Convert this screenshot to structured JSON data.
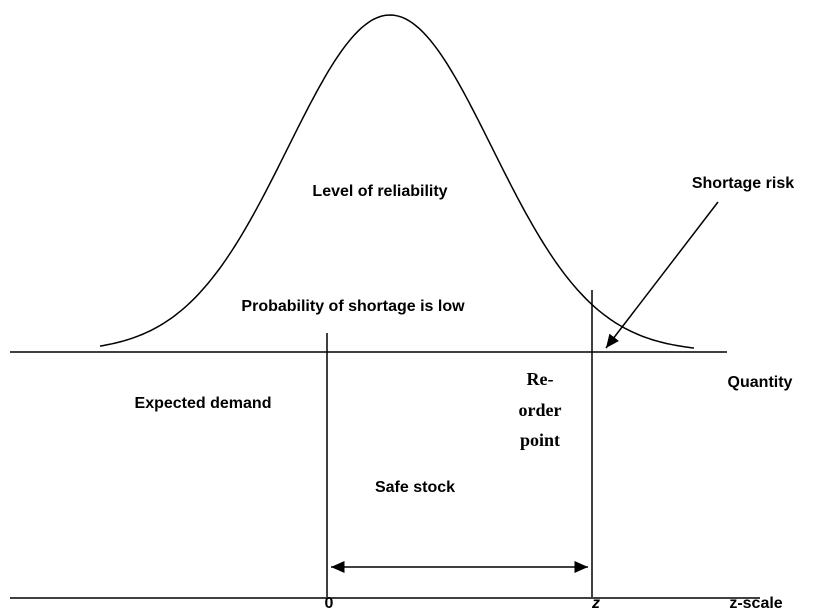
{
  "labels": {
    "level_of_reliability": "Level of reliability",
    "shortage_risk": "Shortage risk",
    "probability_low": "Probability of shortage is low",
    "reorder_point": [
      "Re-",
      "order",
      "point"
    ],
    "quantity": "Quantity",
    "expected_demand": "Expected demand",
    "safe_stock": "Safe stock",
    "zero": "0",
    "z": "z",
    "z_scale": "z-scale"
  }
}
